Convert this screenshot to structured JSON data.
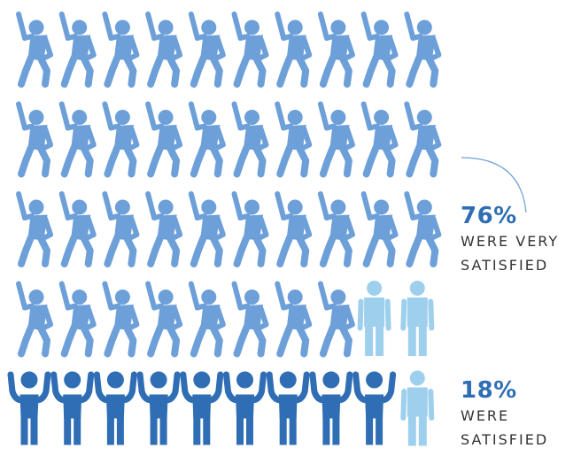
{
  "chart_data": {
    "type": "pictograph",
    "total_icons": 50,
    "segments": [
      {
        "key": "very_satisfied",
        "value_percent": 76,
        "count": 38,
        "pose": "dancing",
        "color": "#6d9fd8",
        "percent_label": "76%",
        "description": [
          "WERE VERY",
          "SATISFIED"
        ]
      },
      {
        "key": "satisfied",
        "value_percent": 18,
        "count": 9,
        "pose": "arms-up",
        "color": "#2f6eb4",
        "percent_label": "18%",
        "description": [
          "WERE",
          "SATISFIED"
        ]
      },
      {
        "key": "other",
        "value_percent": 6,
        "count": 3,
        "pose": "standing",
        "color": "#9ed0ee"
      }
    ],
    "accent_color": "#2f6eb4",
    "connector_color": "#6d9fd8"
  }
}
